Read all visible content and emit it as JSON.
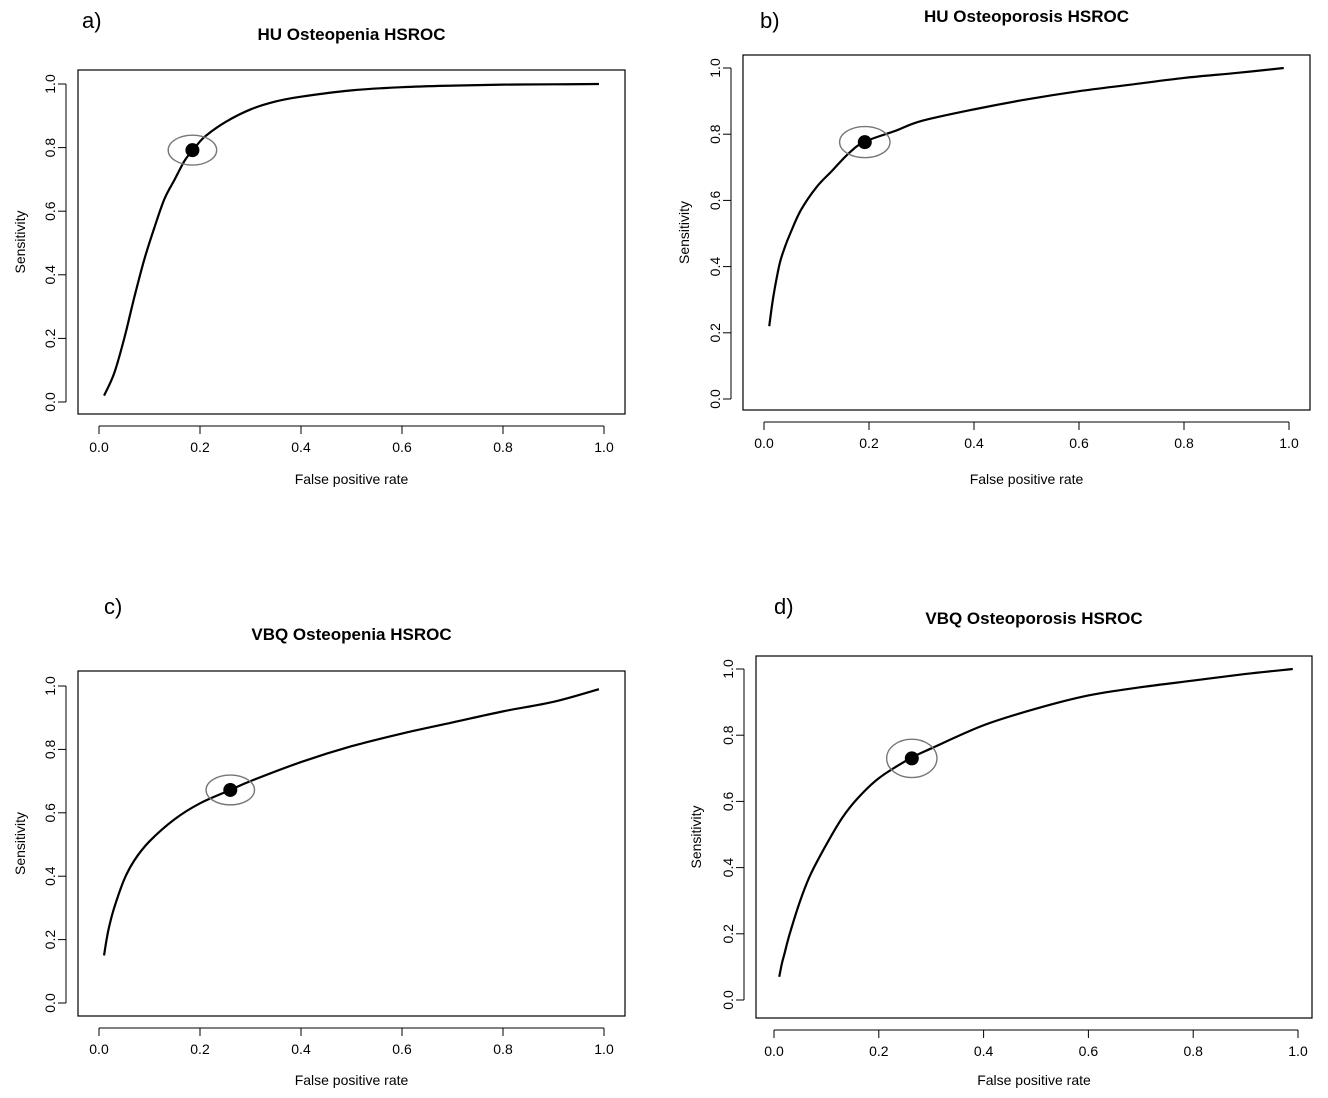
{
  "chart_data": [
    {
      "panel_label": "a)",
      "type": "line",
      "title": "HU Osteopenia HSROC",
      "xlabel": "False positive rate",
      "ylabel": "Sensitivity",
      "xlim": [
        0,
        1
      ],
      "ylim": [
        0,
        1
      ],
      "xticks": [
        "0.0",
        "0.2",
        "0.4",
        "0.6",
        "0.8",
        "1.0"
      ],
      "yticks": [
        "0.0",
        "0.2",
        "0.4",
        "0.6",
        "0.8",
        "1.0"
      ],
      "grid": false,
      "curve": {
        "x": [
          0.01,
          0.03,
          0.05,
          0.07,
          0.09,
          0.11,
          0.13,
          0.15,
          0.17,
          0.19,
          0.21,
          0.25,
          0.3,
          0.35,
          0.4,
          0.5,
          0.6,
          0.7,
          0.8,
          0.9,
          0.99
        ],
        "y": [
          0.02,
          0.09,
          0.2,
          0.33,
          0.45,
          0.55,
          0.64,
          0.7,
          0.76,
          0.8,
          0.835,
          0.88,
          0.92,
          0.945,
          0.96,
          0.98,
          0.99,
          0.995,
          0.998,
          0.999,
          1.0
        ]
      },
      "summary_point": {
        "x": 0.185,
        "y": 0.792
      },
      "confidence_region": {
        "rx": 0.048,
        "ry": 0.047
      }
    },
    {
      "panel_label": "b)",
      "type": "line",
      "title": "HU Osteoporosis HSROC",
      "xlabel": "False positive rate",
      "ylabel": "Sensitivity",
      "xlim": [
        0,
        1
      ],
      "ylim": [
        0,
        1
      ],
      "xticks": [
        "0.0",
        "0.2",
        "0.4",
        "0.6",
        "0.8",
        "1.0"
      ],
      "yticks": [
        "0.0",
        "0.2",
        "0.4",
        "0.6",
        "0.8",
        "1.0"
      ],
      "grid": false,
      "curve": {
        "x": [
          0.01,
          0.015,
          0.02,
          0.03,
          0.04,
          0.05,
          0.07,
          0.1,
          0.13,
          0.16,
          0.19,
          0.25,
          0.3,
          0.4,
          0.5,
          0.6,
          0.7,
          0.8,
          0.9,
          0.99
        ],
        "y": [
          0.22,
          0.28,
          0.33,
          0.41,
          0.46,
          0.5,
          0.57,
          0.64,
          0.69,
          0.74,
          0.776,
          0.81,
          0.84,
          0.875,
          0.905,
          0.93,
          0.95,
          0.97,
          0.985,
          1.0
        ]
      },
      "summary_point": {
        "x": 0.192,
        "y": 0.776
      },
      "confidence_region": {
        "rx": 0.048,
        "ry": 0.047
      }
    },
    {
      "panel_label": "c)",
      "type": "line",
      "title": "VBQ Osteopenia HSROC",
      "xlabel": "False positive rate",
      "ylabel": "Sensitivity",
      "xlim": [
        0,
        1
      ],
      "ylim": [
        0,
        1
      ],
      "xticks": [
        "0.0",
        "0.2",
        "0.4",
        "0.6",
        "0.8",
        "1.0"
      ],
      "yticks": [
        "0.0",
        "0.2",
        "0.4",
        "0.6",
        "0.8",
        "1.0"
      ],
      "grid": false,
      "curve": {
        "x": [
          0.01,
          0.015,
          0.02,
          0.03,
          0.05,
          0.07,
          0.1,
          0.15,
          0.2,
          0.26,
          0.3,
          0.4,
          0.5,
          0.6,
          0.7,
          0.8,
          0.9,
          0.99
        ],
        "y": [
          0.15,
          0.2,
          0.24,
          0.3,
          0.39,
          0.45,
          0.51,
          0.58,
          0.63,
          0.672,
          0.7,
          0.76,
          0.81,
          0.85,
          0.885,
          0.92,
          0.95,
          0.99
        ]
      },
      "summary_point": {
        "x": 0.26,
        "y": 0.672
      },
      "confidence_region": {
        "rx": 0.048,
        "ry": 0.047
      }
    },
    {
      "panel_label": "d)",
      "type": "line",
      "title": "VBQ Osteoporosis HSROC",
      "xlabel": "False positive rate",
      "ylabel": "Sensitivity",
      "xlim": [
        0,
        1
      ],
      "ylim": [
        0,
        1
      ],
      "xticks": [
        "0.0",
        "0.2",
        "0.4",
        "0.6",
        "0.8",
        "1.0"
      ],
      "yticks": [
        "0.0",
        "0.2",
        "0.4",
        "0.6",
        "0.8",
        "1.0"
      ],
      "grid": false,
      "curve": {
        "x": [
          0.01,
          0.015,
          0.02,
          0.03,
          0.05,
          0.07,
          0.1,
          0.13,
          0.16,
          0.2,
          0.26,
          0.3,
          0.4,
          0.5,
          0.6,
          0.7,
          0.8,
          0.9,
          0.99
        ],
        "y": [
          0.07,
          0.11,
          0.14,
          0.2,
          0.3,
          0.38,
          0.47,
          0.55,
          0.61,
          0.67,
          0.73,
          0.76,
          0.83,
          0.88,
          0.92,
          0.945,
          0.965,
          0.985,
          1.0
        ]
      },
      "summary_point": {
        "x": 0.263,
        "y": 0.73
      },
      "confidence_region": {
        "rx": 0.048,
        "ry": 0.058
      }
    }
  ]
}
